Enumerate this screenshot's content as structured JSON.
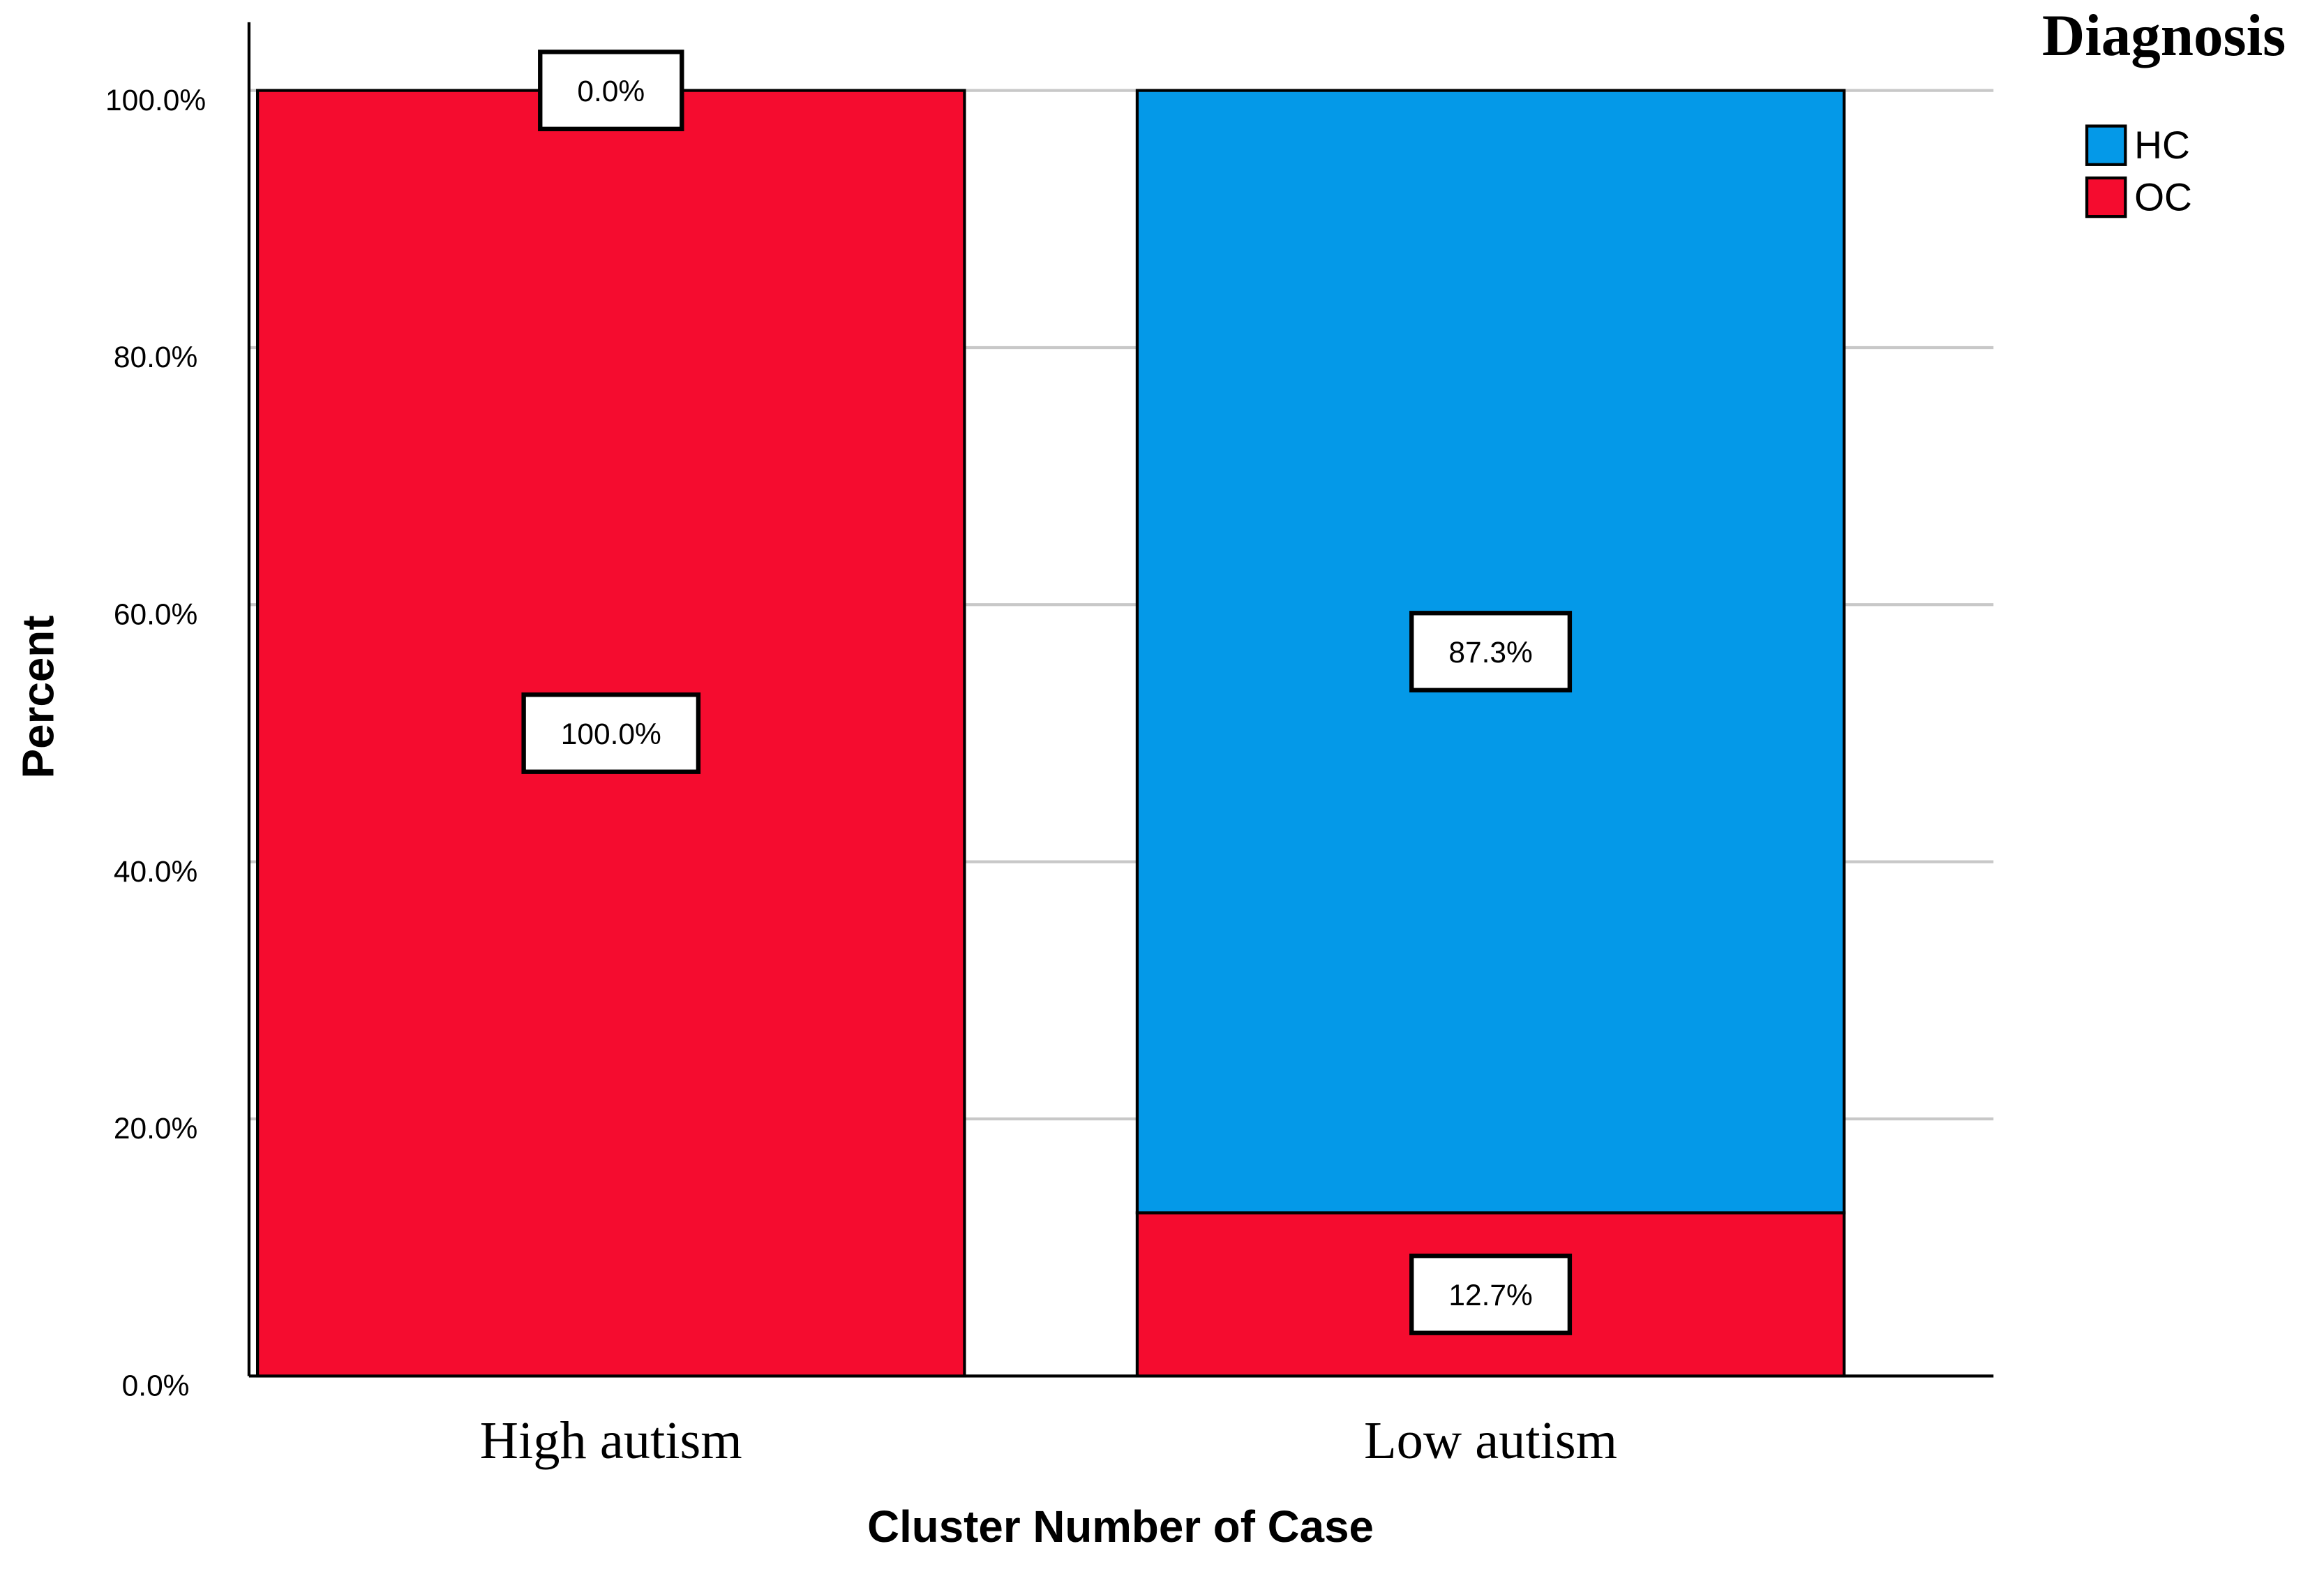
{
  "chart_data": {
    "type": "stacked-bar",
    "categories": [
      "High autism",
      "Low autism"
    ],
    "series": [
      {
        "name": "HC",
        "color": "#0499e8",
        "values": [
          0,
          87.3
        ],
        "value_labels": [
          "0.0%",
          "87.3%"
        ]
      },
      {
        "name": "OC",
        "color": "#f50c2f",
        "values": [
          100,
          12.7
        ],
        "value_labels": [
          "100.0%",
          "12.7%"
        ]
      }
    ],
    "ylim": [
      0,
      100
    ],
    "yticks": [
      {
        "value": 0,
        "label": "0.0%"
      },
      {
        "value": 20,
        "label": "20.0%"
      },
      {
        "value": 40,
        "label": "40.0%"
      },
      {
        "value": 60,
        "label": "60.0%"
      },
      {
        "value": 80,
        "label": "80.0%"
      },
      {
        "value": 100,
        "label": "100.0%"
      }
    ],
    "y_label": "Percent",
    "x_label": "Cluster Number of Case",
    "legend_title": "Diagnosis",
    "legend": "top-right",
    "grid": true
  }
}
